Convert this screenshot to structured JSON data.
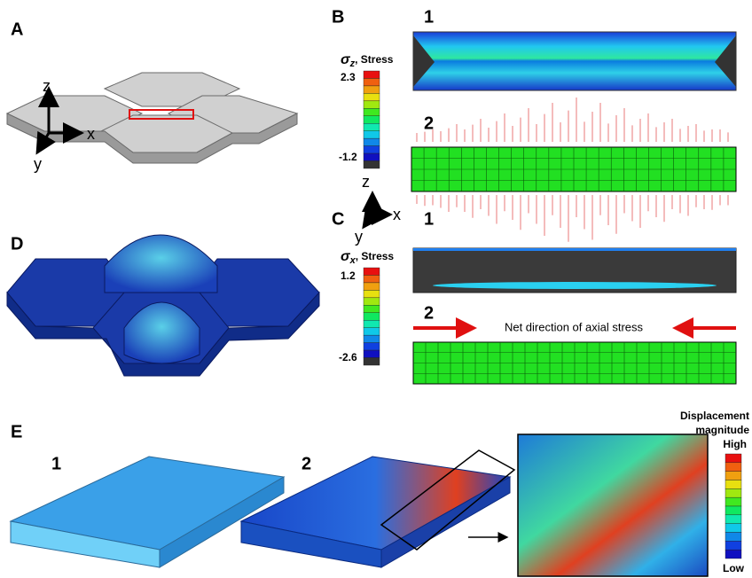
{
  "panels": {
    "a": {
      "label": "A",
      "axes": {
        "z": "z",
        "x": "x",
        "y": "y"
      }
    },
    "b": {
      "label": "B",
      "legend": {
        "symbol": "σ",
        "subscript": "z",
        "title": ", Stress",
        "max": "2.3",
        "min": "-1.2"
      },
      "views": [
        "1",
        "2"
      ]
    },
    "axes_bc": {
      "z": "z",
      "x": "x",
      "y": "y"
    },
    "c": {
      "label": "C",
      "legend": {
        "symbol": "σ",
        "subscript": "x",
        "title": ", Stress",
        "max": "1.2",
        "min": "-2.6"
      },
      "views": [
        "1",
        "2"
      ],
      "annotation": "Net direction of axial stress"
    },
    "d": {
      "label": "D"
    },
    "e": {
      "label": "E",
      "views": [
        "1",
        "2"
      ],
      "legend": {
        "title_line1": "Displacement",
        "title_line2": "magnitude",
        "high": "High",
        "low": "Low"
      }
    }
  }
}
